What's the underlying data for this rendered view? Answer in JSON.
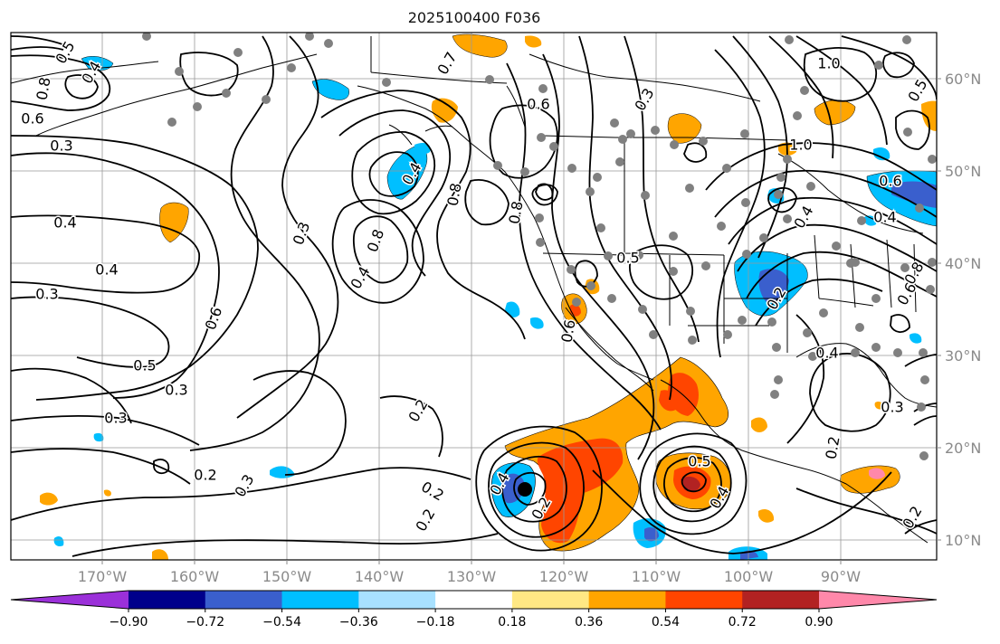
{
  "title": "2025100400 F036",
  "lon_ticks": [
    "170°W",
    "160°W",
    "150°W",
    "140°W",
    "130°W",
    "120°W",
    "110°W",
    "100°W",
    "90°W"
  ],
  "lat_ticks": [
    "10°N",
    "20°N",
    "30°N",
    "40°N",
    "50°N",
    "60°N"
  ],
  "contour_labels": [
    "0.5",
    "0.4",
    "0.8",
    "0.6",
    "0.3",
    "0.4",
    "0.4",
    "0.3",
    "0.6",
    "0.5",
    "0.3",
    "0.3",
    "0.2",
    "0.3",
    "0.7",
    "0.6",
    "0.3",
    "0.4",
    "0.8",
    "0.3",
    "0.8",
    "0.4",
    "0.6",
    "1.0",
    "0.5",
    "0.8",
    "0.2",
    "0.2",
    "0.2",
    "0.4",
    "0.2",
    "0.5",
    "0.5",
    "0.4",
    "1.0",
    "0.6",
    "0.4",
    "0.4",
    "0.2",
    "0.4",
    "0.3",
    "0.2",
    "0.2",
    "0.8",
    "0.6"
  ],
  "colorbar": {
    "ticks": [
      "−0.90",
      "−0.72",
      "−0.54",
      "−0.36",
      "−0.18",
      "0.18",
      "0.36",
      "0.54",
      "0.72",
      "0.90"
    ],
    "colors": [
      "#9b30d9",
      "#00008b",
      "#3a5fcd",
      "#00bfff",
      "#a8e1ff",
      "#ffffff",
      "#ffe884",
      "#ffa500",
      "#ff4500",
      "#b22222",
      "#ff88aa"
    ]
  },
  "map_colors": {
    "orange": "#ffa500",
    "red_orange": "#ff4500",
    "dark_red": "#b22222",
    "sky_blue": "#00bfff",
    "royal_blue": "#3a5fcd",
    "station_dot": "#808080"
  }
}
